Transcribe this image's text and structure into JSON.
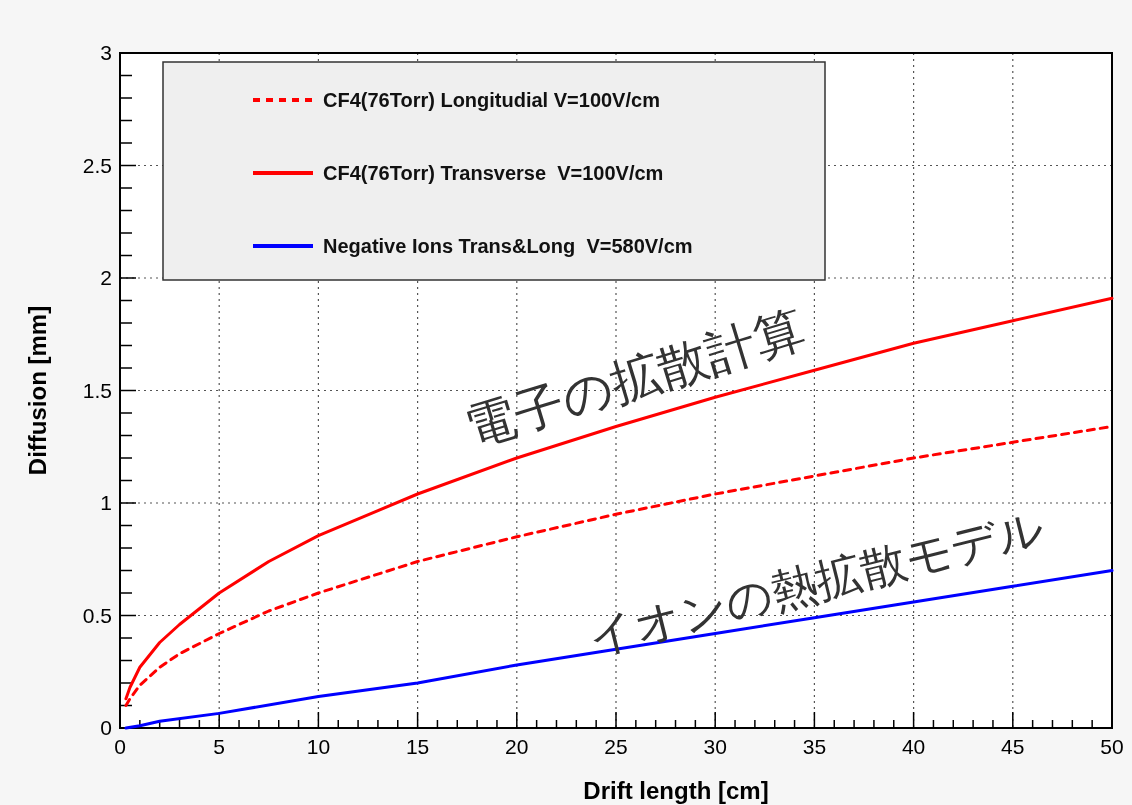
{
  "chart_data": {
    "type": "line",
    "xlabel": "Drift length [cm]",
    "ylabel": "Diffusion [mm]",
    "xlim": [
      0,
      50
    ],
    "ylim": [
      0,
      3
    ],
    "xticks": [
      0,
      5,
      10,
      15,
      20,
      25,
      30,
      35,
      40,
      45,
      50
    ],
    "yticks": [
      0,
      0.5,
      1,
      1.5,
      2,
      2.5,
      3
    ],
    "grid": true,
    "legend": "top left",
    "series": [
      {
        "name": "CF4(76Torr) Longitudial V=100V/cm",
        "color": "#ff0000",
        "line_style": "dashed",
        "x": [
          0.3,
          0.5,
          1,
          2,
          3,
          5,
          7.5,
          10,
          15,
          20,
          25,
          30,
          35,
          40,
          45,
          50
        ],
        "values": [
          0.1,
          0.13,
          0.19,
          0.27,
          0.33,
          0.42,
          0.52,
          0.6,
          0.74,
          0.85,
          0.95,
          1.04,
          1.12,
          1.2,
          1.27,
          1.34
        ]
      },
      {
        "name": "CF4(76Torr) Transverse  V=100V/cm",
        "color": "#ff0000",
        "line_style": "solid",
        "x": [
          0.3,
          0.5,
          1,
          2,
          3,
          5,
          7.5,
          10,
          15,
          20,
          25,
          30,
          35,
          40,
          45,
          50
        ],
        "values": [
          0.13,
          0.18,
          0.27,
          0.38,
          0.46,
          0.6,
          0.74,
          0.855,
          1.04,
          1.2,
          1.34,
          1.47,
          1.59,
          1.71,
          1.81,
          1.91
        ]
      },
      {
        "name": "Negative Ions Trans&Long  V=580V/cm",
        "color": "#0000ff",
        "line_style": "solid",
        "x": [
          0.3,
          1,
          2,
          5,
          10,
          15,
          20,
          25,
          30,
          35,
          40,
          45,
          50
        ],
        "values": [
          0,
          0.01,
          0.03,
          0.065,
          0.14,
          0.2,
          0.28,
          0.35,
          0.42,
          0.49,
          0.56,
          0.63,
          0.7
        ]
      }
    ],
    "annotations": [
      "電子の拡散計算",
      "イオンの熱拡散モデル"
    ]
  }
}
